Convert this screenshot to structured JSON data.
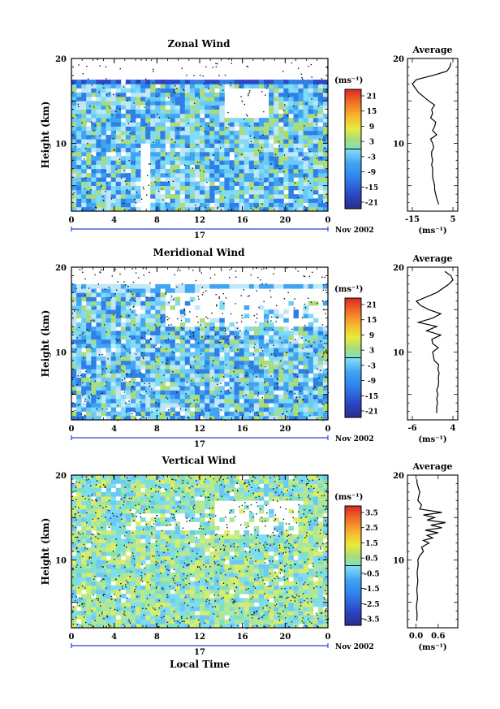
{
  "panels": [
    {
      "id": "zonal",
      "title": "Zonal Wind",
      "ylabel": "Height (km)",
      "y_ticks": [
        "20",
        "10"
      ],
      "x_ticks": [
        "0",
        "4",
        "8",
        "12",
        "16",
        "20",
        "0"
      ],
      "day_label": "17",
      "date_label": "Nov 2002",
      "colorbar_unit": "(ms⁻¹)",
      "colorbar_ticks": [
        "21",
        "15",
        "9",
        "3",
        "-3",
        "-9",
        "-15",
        "-21"
      ],
      "avg_title": "Average",
      "avg_y_ticks": [
        "20",
        "10"
      ],
      "avg_x_ticks": [
        "-15",
        "5"
      ],
      "avg_unit": "(ms⁻¹)"
    },
    {
      "id": "meridional",
      "title": "Meridional Wind",
      "ylabel": "Height (km)",
      "y_ticks": [
        "20",
        "10"
      ],
      "x_ticks": [
        "0",
        "4",
        "8",
        "12",
        "16",
        "20",
        "0"
      ],
      "day_label": "17",
      "date_label": "Nov 2002",
      "colorbar_unit": "(ms⁻¹)",
      "colorbar_ticks": [
        "21",
        "15",
        "9",
        "3",
        "-3",
        "-9",
        "-15",
        "-21"
      ],
      "avg_title": "Average",
      "avg_y_ticks": [
        "20",
        "10"
      ],
      "avg_x_ticks": [
        "-6",
        "4"
      ],
      "avg_unit": "(ms⁻¹)"
    },
    {
      "id": "vertical",
      "title": "Vertical Wind",
      "ylabel": "Height (km)",
      "y_ticks": [
        "20",
        "10"
      ],
      "x_ticks": [
        "0",
        "4",
        "8",
        "12",
        "16",
        "20",
        "0"
      ],
      "day_label": "17",
      "date_label": "Nov 2002",
      "xlabel": "Local Time",
      "colorbar_unit": "(ms⁻¹)",
      "colorbar_ticks": [
        "3.5",
        "2.5",
        "1.5",
        "0.5",
        "-0.5",
        "-1.5",
        "-2.5",
        "-3.5"
      ],
      "avg_title": "Average",
      "avg_y_ticks": [
        "20",
        "10"
      ],
      "avg_x_ticks": [
        "0.0",
        "0.6"
      ],
      "avg_unit": "(ms⁻¹)"
    }
  ],
  "chart_data": [
    {
      "type": "heatmap",
      "title": "Zonal Wind",
      "ylabel": "Height (km)",
      "xlabel": "",
      "x_range": [
        0,
        24
      ],
      "ylim": [
        2,
        20
      ],
      "color_range": [
        -24,
        24
      ],
      "colorbar_levels": [
        -21,
        -15,
        -9,
        -3,
        3,
        9,
        15,
        21
      ],
      "colormap_colors": [
        "#2d2c86",
        "#2b46c8",
        "#2f7fe6",
        "#40a4f3",
        "#6cc8f7",
        "#bfe7f7",
        "#a9dc7a",
        "#e9ea3e",
        "#f8b52c",
        "#f06a26",
        "#d7272a"
      ]
    },
    {
      "type": "line",
      "title": "Average",
      "xlabel": "(ms⁻¹)",
      "xlim": [
        -15,
        5
      ],
      "ylim": [
        2,
        20
      ],
      "x": [
        -2,
        -3,
        -3.5,
        -4,
        -4,
        -4.5,
        -5,
        -5,
        -5,
        -5.5,
        -5,
        -5.5,
        -5.5,
        -4.5,
        -5,
        -6,
        -3,
        -5,
        -4,
        -3.5,
        -6,
        -5,
        -5.5,
        -4,
        -7,
        -12,
        -15,
        -13,
        -5,
        2,
        3.5,
        4
      ],
      "y": [
        2.8,
        3.5,
        4,
        4.5,
        5,
        5.5,
        6,
        6.5,
        7,
        7.5,
        8,
        8.5,
        9,
        9.5,
        10,
        10.5,
        11,
        11.5,
        12,
        12.5,
        13,
        13.5,
        14,
        14.5,
        15,
        16,
        17,
        17.5,
        18,
        18.5,
        19,
        19.5
      ]
    },
    {
      "type": "heatmap",
      "title": "Meridional Wind",
      "ylabel": "Height (km)",
      "xlabel": "",
      "x_range": [
        0,
        24
      ],
      "ylim": [
        2,
        20
      ],
      "color_range": [
        -24,
        24
      ],
      "colorbar_levels": [
        -21,
        -15,
        -9,
        -3,
        3,
        9,
        15,
        21
      ]
    },
    {
      "type": "line",
      "title": "Average",
      "xlabel": "(ms⁻¹)",
      "xlim": [
        -6,
        4
      ],
      "ylim": [
        2,
        20
      ],
      "x": [
        0,
        0,
        0.2,
        0,
        0.3,
        0,
        0.4,
        0.5,
        0.4,
        0.6,
        0.3,
        0.5,
        -0.6,
        -1,
        0.4,
        -1,
        -1.2,
        1,
        -2.5,
        0,
        -4.5,
        -1,
        1,
        -2,
        -4,
        -5,
        0,
        3,
        4,
        3.5,
        2
      ],
      "y": [
        2.8,
        3.5,
        4,
        4.5,
        5,
        5.5,
        6,
        6.5,
        7,
        7.5,
        8,
        8.5,
        9,
        10,
        10.5,
        11,
        11.5,
        12,
        12.5,
        13,
        13.5,
        14,
        14.5,
        15,
        15.5,
        16,
        17,
        18,
        18.5,
        19,
        19.5
      ]
    },
    {
      "type": "heatmap",
      "title": "Vertical Wind",
      "ylabel": "Height (km)",
      "xlabel": "Local Time",
      "x_range": [
        0,
        24
      ],
      "ylim": [
        2,
        20
      ],
      "color_range": [
        -4,
        4
      ],
      "colorbar_levels": [
        -3.5,
        -2.5,
        -1.5,
        -0.5,
        0.5,
        1.5,
        2.5,
        3.5
      ]
    },
    {
      "type": "line",
      "title": "Average",
      "xlabel": "(ms⁻¹)",
      "xlim": [
        -0.1,
        1.0
      ],
      "ylim": [
        2,
        20
      ],
      "x": [
        0.02,
        0.03,
        0.01,
        0.04,
        0.02,
        0.05,
        0.03,
        0.06,
        0.05,
        0.1,
        0.2,
        0.15,
        0.35,
        0.2,
        0.45,
        0.3,
        0.6,
        0.25,
        0.7,
        0.4,
        0.8,
        0.3,
        0.5,
        0.2,
        0.7,
        0.1,
        0.15,
        0.05,
        0.1,
        0.03,
        0.02
      ],
      "y": [
        2.8,
        3.5,
        4.5,
        5.5,
        6.5,
        7.5,
        8.5,
        9.5,
        10,
        10.5,
        11,
        11.5,
        12,
        12.3,
        12.6,
        12.9,
        13.2,
        13.5,
        13.8,
        14.1,
        14.4,
        14.7,
        15,
        15.3,
        15.6,
        16,
        16.5,
        17,
        18,
        19,
        19.5
      ]
    }
  ]
}
